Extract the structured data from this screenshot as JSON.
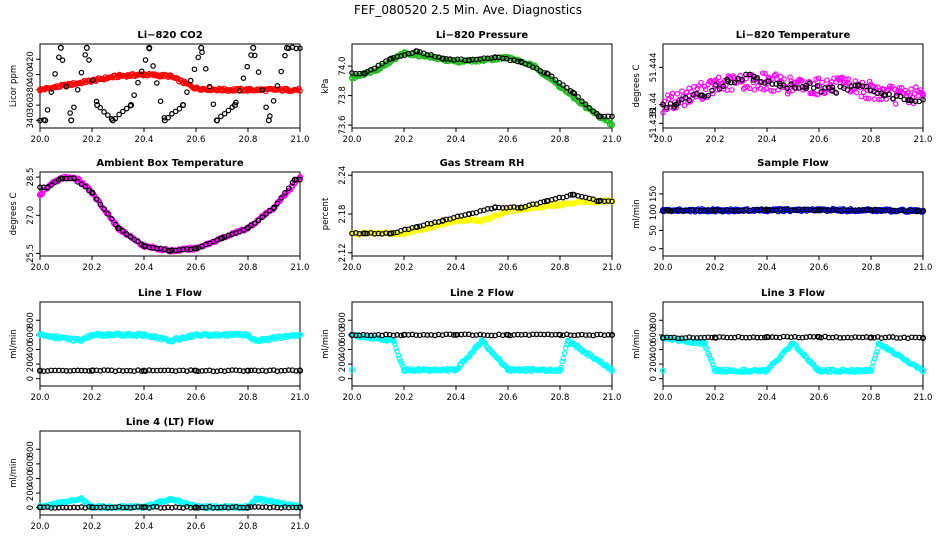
{
  "title": "FEF_080520  2.5 Min. Ave. Diagnostics",
  "colors": {
    "red": "#ff0000",
    "green": "#22bb22",
    "magenta": "#ff00ff",
    "yellow": "#ffff00",
    "blue": "#0000ff",
    "cyan": "#00ffff",
    "black": "#000000"
  },
  "chart_data": [
    {
      "type": "scatter",
      "title": "Li−820 CO2",
      "ylabel": "Licor ppm",
      "xlim": [
        20.0,
        21.0
      ],
      "xticks": [
        "20.0",
        "20.2",
        "20.4",
        "20.6",
        "20.8",
        "21.0"
      ],
      "ylim": [
        330,
        440
      ],
      "yticks": [
        "340",
        "360",
        "380",
        "400",
        "420"
      ],
      "series": [
        {
          "color": "red",
          "points": [
            [
              20.0,
              380
            ],
            [
              20.1,
              386
            ],
            [
              20.2,
              392
            ],
            [
              20.3,
              398
            ],
            [
              20.4,
              400
            ],
            [
              20.5,
              398
            ],
            [
              20.55,
              390
            ],
            [
              20.6,
              382
            ],
            [
              20.7,
              380
            ],
            [
              20.8,
              380
            ],
            [
              20.9,
              380
            ],
            [
              20.95,
              380
            ]
          ]
        },
        {
          "color": "black",
          "points": [
            [
              20.02,
              340
            ],
            [
              20.08,
              435
            ],
            [
              20.12,
              340
            ],
            [
              20.18,
              435
            ],
            [
              20.22,
              360
            ],
            [
              20.28,
              340
            ],
            [
              20.35,
              360
            ],
            [
              20.42,
              435
            ],
            [
              20.48,
              340
            ],
            [
              20.55,
              360
            ],
            [
              20.62,
              435
            ],
            [
              20.68,
              340
            ],
            [
              20.75,
              360
            ],
            [
              20.82,
              435
            ],
            [
              20.88,
              340
            ],
            [
              20.95,
              435
            ]
          ]
        }
      ]
    },
    {
      "type": "scatter",
      "title": "Li−820 Pressure",
      "ylabel": "kPa",
      "xlim": [
        20.0,
        21.0
      ],
      "xticks": [
        "20.0",
        "20.2",
        "20.4",
        "20.6",
        "20.8",
        "21.0"
      ],
      "ylim": [
        73.58,
        74.15
      ],
      "yticks": [
        "73.6",
        "73.8",
        "74.0"
      ],
      "series": [
        {
          "color": "green",
          "points": [
            [
              20.0,
              73.92
            ],
            [
              20.1,
              73.98
            ],
            [
              20.2,
              74.09
            ],
            [
              20.3,
              74.06
            ],
            [
              20.4,
              74.03
            ],
            [
              20.5,
              74.04
            ],
            [
              20.6,
              74.06
            ],
            [
              20.7,
              74.0
            ],
            [
              20.8,
              73.86
            ],
            [
              20.9,
              73.72
            ],
            [
              21.0,
              73.6
            ]
          ]
        },
        {
          "color": "black",
          "points": [
            [
              20.05,
              73.95
            ],
            [
              20.15,
              74.05
            ],
            [
              20.25,
              74.1
            ],
            [
              20.35,
              74.05
            ],
            [
              20.45,
              74.04
            ],
            [
              20.55,
              74.06
            ],
            [
              20.65,
              74.03
            ],
            [
              20.75,
              73.95
            ],
            [
              20.85,
              73.82
            ],
            [
              20.95,
              73.66
            ]
          ]
        }
      ]
    },
    {
      "type": "scatter",
      "title": "Li−820 Temperature",
      "ylabel": "degrees C",
      "xlim": [
        20.0,
        21.0
      ],
      "xticks": [
        "20.0",
        "20.2",
        "20.4",
        "20.6",
        "20.8",
        "21.0"
      ],
      "ylim": [
        51.4375,
        51.4465
      ],
      "yticks": [
        "51.438",
        "51.44",
        "51.444"
      ],
      "series": [
        {
          "color": "magenta",
          "points": [
            [
              20.0,
              51.44
            ],
            [
              20.1,
              51.441
            ],
            [
              20.2,
              51.442
            ],
            [
              20.3,
              51.4425
            ],
            [
              20.4,
              51.4425
            ],
            [
              20.5,
              51.442
            ],
            [
              20.6,
              51.442
            ],
            [
              20.7,
              51.442
            ],
            [
              20.8,
              51.4415
            ],
            [
              20.9,
              51.441
            ],
            [
              21.0,
              51.441
            ]
          ]
        },
        {
          "color": "black",
          "points": [
            [
              20.05,
              51.44
            ],
            [
              20.15,
              51.441
            ],
            [
              20.25,
              51.4425
            ],
            [
              20.35,
              51.443
            ],
            [
              20.45,
              51.442
            ],
            [
              20.55,
              51.442
            ],
            [
              20.65,
              51.4415
            ],
            [
              20.75,
              51.442
            ],
            [
              20.85,
              51.441
            ],
            [
              20.95,
              51.4405
            ]
          ]
        }
      ]
    },
    {
      "type": "scatter",
      "title": "Ambient Box Temperature",
      "ylabel": "degrees C",
      "xlim": [
        20.0,
        21.0
      ],
      "xticks": [
        "20.0",
        "20.2",
        "20.4",
        "20.6",
        "20.8",
        "21.0"
      ],
      "ylim": [
        25.4,
        28.7
      ],
      "yticks": [
        "25.5",
        "27.0",
        "28.5"
      ],
      "series": [
        {
          "color": "magenta",
          "points": [
            [
              20.0,
              27.8
            ],
            [
              20.05,
              28.3
            ],
            [
              20.1,
              28.5
            ],
            [
              20.15,
              28.4
            ],
            [
              20.2,
              27.9
            ],
            [
              20.3,
              26.5
            ],
            [
              20.4,
              25.8
            ],
            [
              20.5,
              25.6
            ],
            [
              20.6,
              25.7
            ],
            [
              20.7,
              26.1
            ],
            [
              20.8,
              26.5
            ],
            [
              20.9,
              27.3
            ],
            [
              21.0,
              28.5
            ]
          ]
        },
        {
          "color": "black",
          "points": [
            [
              20.03,
              28.1
            ],
            [
              20.08,
              28.45
            ],
            [
              20.13,
              28.45
            ],
            [
              20.2,
              27.9
            ],
            [
              20.3,
              26.5
            ],
            [
              20.4,
              25.8
            ],
            [
              20.5,
              25.6
            ],
            [
              20.6,
              25.7
            ],
            [
              20.7,
              26.1
            ],
            [
              20.8,
              26.5
            ],
            [
              20.9,
              27.3
            ],
            [
              20.98,
              28.4
            ]
          ]
        }
      ]
    },
    {
      "type": "scatter",
      "title": "Gas Stream RH",
      "ylabel": "percent",
      "xlim": [
        20.0,
        21.0
      ],
      "xticks": [
        "20.0",
        "20.2",
        "20.4",
        "20.6",
        "20.8",
        "21.0"
      ],
      "ylim": [
        2.115,
        2.245
      ],
      "yticks": [
        "2.12",
        "2.18",
        "2.24"
      ],
      "series": [
        {
          "color": "yellow",
          "points": [
            [
              20.0,
              2.15
            ],
            [
              20.1,
              2.15
            ],
            [
              20.2,
              2.15
            ],
            [
              20.3,
              2.16
            ],
            [
              20.4,
              2.17
            ],
            [
              20.5,
              2.17
            ],
            [
              20.6,
              2.185
            ],
            [
              20.7,
              2.19
            ],
            [
              20.8,
              2.195
            ],
            [
              20.9,
              2.2
            ],
            [
              21.0,
              2.2
            ]
          ]
        },
        {
          "color": "black",
          "points": [
            [
              20.05,
              2.15
            ],
            [
              20.15,
              2.15
            ],
            [
              20.25,
              2.16
            ],
            [
              20.35,
              2.17
            ],
            [
              20.45,
              2.18
            ],
            [
              20.55,
              2.19
            ],
            [
              20.65,
              2.19
            ],
            [
              20.75,
              2.2
            ],
            [
              20.85,
              2.21
            ],
            [
              20.95,
              2.2
            ]
          ]
        }
      ]
    },
    {
      "type": "scatter",
      "title": "Sample Flow",
      "ylabel": "ml/min",
      "xlim": [
        20.0,
        21.0
      ],
      "xticks": [
        "20.0",
        "20.2",
        "20.4",
        "20.6",
        "20.8",
        "21.0"
      ],
      "ylim": [
        -20,
        210
      ],
      "yticks": [
        "0",
        "50",
        "100",
        "150"
      ],
      "series": [
        {
          "color": "blue",
          "points": [
            [
              20.0,
              105
            ],
            [
              20.2,
              105
            ],
            [
              20.4,
              105
            ],
            [
              20.6,
              106
            ],
            [
              20.8,
              105
            ],
            [
              21.0,
              104
            ]
          ]
        },
        {
          "color": "black",
          "points": [
            [
              20.02,
              104
            ],
            [
              20.2,
              105
            ],
            [
              20.4,
              106
            ],
            [
              20.6,
              106
            ],
            [
              20.8,
              105
            ],
            [
              20.98,
              104
            ]
          ]
        }
      ]
    },
    {
      "type": "scatter",
      "title": "Line 1 Flow",
      "ylabel": "ml/min",
      "xlim": [
        20.0,
        21.0
      ],
      "xticks": [
        "20.0",
        "20.2",
        "20.4",
        "20.6",
        "20.8",
        "21.0"
      ],
      "ylim": [
        -100,
        1050
      ],
      "yticks": [
        "0",
        "200",
        "400",
        "600",
        "800"
      ],
      "series": [
        {
          "color": "cyan",
          "points": [
            [
              20.0,
              600
            ],
            [
              20.2,
              600
            ],
            [
              20.4,
              600
            ],
            [
              20.6,
              600
            ],
            [
              20.8,
              600
            ],
            [
              21.0,
              600
            ],
            [
              20.16,
              520
            ],
            [
              20.5,
              520
            ],
            [
              20.83,
              520
            ]
          ]
        },
        {
          "color": "black",
          "points": [
            [
              20.0,
              110
            ],
            [
              20.2,
              110
            ],
            [
              20.4,
              110
            ],
            [
              20.6,
              110
            ],
            [
              20.8,
              110
            ],
            [
              21.0,
              110
            ]
          ]
        }
      ]
    },
    {
      "type": "scatter",
      "title": "Line 2 Flow",
      "ylabel": "ml/min",
      "xlim": [
        20.0,
        21.0
      ],
      "xticks": [
        "20.0",
        "20.2",
        "20.4",
        "20.6",
        "20.8",
        "21.0"
      ],
      "ylim": [
        -100,
        1050
      ],
      "yticks": [
        "0",
        "200",
        "400",
        "600",
        "800"
      ],
      "series": [
        {
          "color": "cyan",
          "points": [
            [
              20.0,
              120
            ],
            [
              20.2,
              120
            ],
            [
              20.4,
              120
            ],
            [
              20.6,
              120
            ],
            [
              20.8,
              120
            ],
            [
              21.0,
              120
            ],
            [
              20.16,
              520
            ],
            [
              20.5,
              520
            ],
            [
              20.83,
              520
            ],
            [
              20.0,
              600
            ]
          ]
        },
        {
          "color": "black",
          "points": [
            [
              20.0,
              600
            ],
            [
              20.2,
              600
            ],
            [
              20.4,
              600
            ],
            [
              20.6,
              600
            ],
            [
              20.8,
              600
            ],
            [
              21.0,
              600
            ]
          ]
        }
      ]
    },
    {
      "type": "scatter",
      "title": "Line 3 Flow",
      "ylabel": "ml/min",
      "xlim": [
        20.0,
        21.0
      ],
      "xticks": [
        "20.0",
        "20.2",
        "20.4",
        "20.6",
        "20.8",
        "21.0"
      ],
      "ylim": [
        -100,
        1050
      ],
      "yticks": [
        "0",
        "200",
        "400",
        "600",
        "800"
      ],
      "series": [
        {
          "color": "cyan",
          "points": [
            [
              20.0,
              110
            ],
            [
              20.2,
              110
            ],
            [
              20.4,
              110
            ],
            [
              20.6,
              110
            ],
            [
              20.8,
              110
            ],
            [
              21.0,
              110
            ],
            [
              20.16,
              480
            ],
            [
              20.5,
              480
            ],
            [
              20.83,
              480
            ],
            [
              20.0,
              560
            ]
          ]
        },
        {
          "color": "black",
          "points": [
            [
              20.0,
              560
            ],
            [
              20.2,
              565
            ],
            [
              20.4,
              570
            ],
            [
              20.6,
              570
            ],
            [
              20.8,
              565
            ],
            [
              21.0,
              560
            ]
          ]
        }
      ]
    },
    {
      "type": "scatter",
      "title": "Line 4 (LT) Flow",
      "ylabel": "ml/min",
      "xlim": [
        20.0,
        21.0
      ],
      "xticks": [
        "20.0",
        "20.2",
        "20.4",
        "20.6",
        "20.8",
        "21.0"
      ],
      "ylim": [
        -100,
        1050
      ],
      "yticks": [
        "0",
        "200",
        "400",
        "600",
        "800"
      ],
      "series": [
        {
          "color": "cyan",
          "points": [
            [
              20.0,
              10
            ],
            [
              20.2,
              10
            ],
            [
              20.4,
              10
            ],
            [
              20.6,
              10
            ],
            [
              20.8,
              10
            ],
            [
              21.0,
              10
            ],
            [
              20.16,
              120
            ],
            [
              20.5,
              120
            ],
            [
              20.83,
              120
            ]
          ]
        },
        {
          "color": "black",
          "points": [
            [
              20.0,
              5
            ],
            [
              20.2,
              5
            ],
            [
              20.4,
              5
            ],
            [
              20.6,
              5
            ],
            [
              20.8,
              5
            ],
            [
              21.0,
              5
            ]
          ]
        }
      ]
    }
  ]
}
